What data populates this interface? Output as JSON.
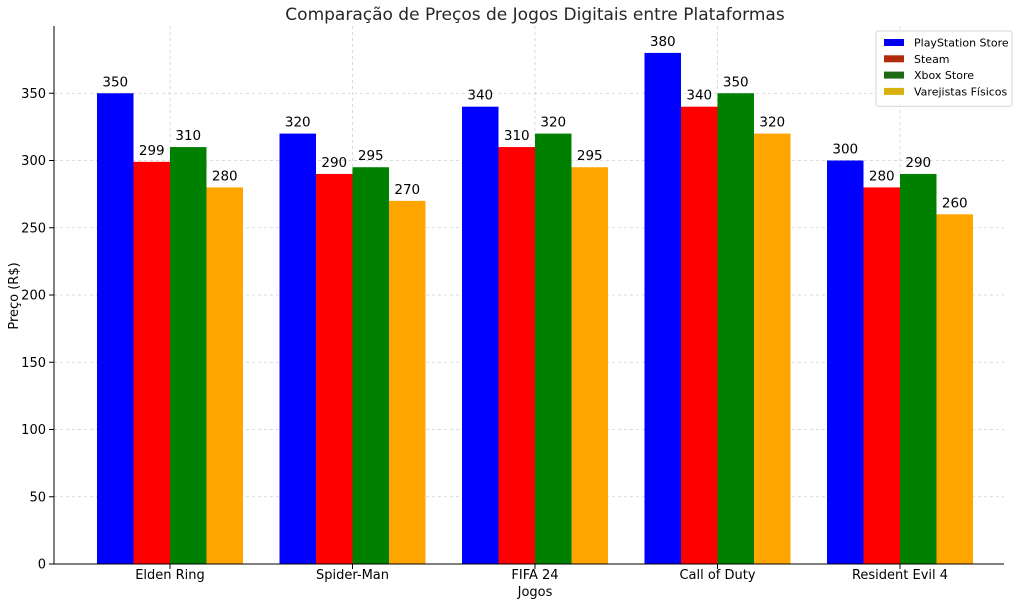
{
  "chart_data": {
    "type": "bar",
    "title": "Comparação de Preços de Jogos Digitais entre Plataformas",
    "xlabel": "Jogos",
    "ylabel": "Preço (R$)",
    "categories": [
      "Elden Ring",
      "Spider-Man",
      "FIFA 24",
      "Call of Duty",
      "Resident Evil 4"
    ],
    "series": [
      {
        "name": "PlayStation Store",
        "color": "#0000ff",
        "legend_color": "#0000ee",
        "values": [
          350,
          320,
          340,
          380,
          300
        ]
      },
      {
        "name": "Steam",
        "color": "#ff0000",
        "legend_color": "#b22b0a",
        "values": [
          299,
          290,
          310,
          340,
          280
        ]
      },
      {
        "name": "Xbox Store",
        "color": "#008000",
        "legend_color": "#1c6a12",
        "values": [
          310,
          295,
          320,
          350,
          290
        ]
      },
      {
        "name": "Varejistas Físicos",
        "color": "#ffa500",
        "legend_color": "#d8b10e",
        "values": [
          280,
          270,
          295,
          320,
          260
        ]
      }
    ],
    "ylim": [
      0,
      400
    ],
    "yticks": [
      0,
      50,
      100,
      150,
      200,
      250,
      300,
      350
    ],
    "grid": true,
    "legend_position": "top-right"
  }
}
